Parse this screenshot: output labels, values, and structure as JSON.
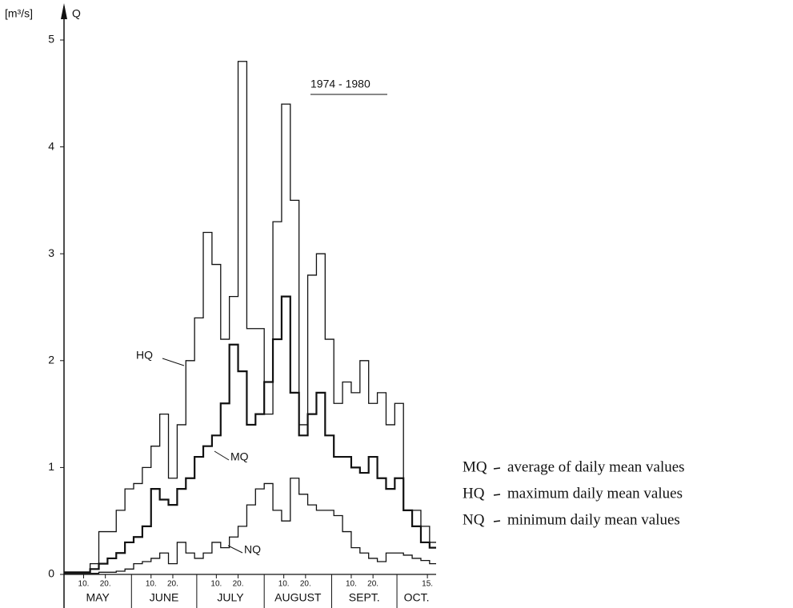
{
  "chart_data": {
    "type": "step",
    "annotation": "1974 - 1980",
    "y_label": "[m³/s]",
    "y_symbol": "Q",
    "color": "#111111",
    "x": [
      1,
      5,
      9,
      13,
      17,
      21,
      25,
      29,
      33,
      37,
      41,
      45,
      49,
      53,
      57,
      61,
      65,
      69,
      73,
      77,
      81,
      85,
      89,
      93,
      97,
      101,
      105,
      109,
      113,
      117,
      121,
      125,
      129,
      133,
      137,
      141,
      145,
      149,
      153,
      157,
      161,
      165,
      169
    ],
    "xlim": [
      1,
      172
    ],
    "xticks": [
      {
        "value": 10,
        "label": "10."
      },
      {
        "value": 20,
        "label": "20."
      },
      {
        "value": 41,
        "label": "10."
      },
      {
        "value": 51,
        "label": "20."
      },
      {
        "value": 71,
        "label": "10."
      },
      {
        "value": 81,
        "label": "20."
      },
      {
        "value": 102,
        "label": "10."
      },
      {
        "value": 112,
        "label": "20."
      },
      {
        "value": 133,
        "label": "10."
      },
      {
        "value": 143,
        "label": "20."
      },
      {
        "value": 168,
        "label": "15."
      }
    ],
    "months": [
      {
        "value": 1,
        "label": "MAY"
      },
      {
        "value": 32,
        "label": "JUNE"
      },
      {
        "value": 62,
        "label": "JULY"
      },
      {
        "value": 93,
        "label": "AUGUST"
      },
      {
        "value": 124,
        "label": "SEPT."
      },
      {
        "value": 154,
        "label": "OCT."
      }
    ],
    "ylim": [
      0,
      5
    ],
    "yticks": [
      0,
      1,
      2,
      3,
      4,
      5
    ],
    "grid": false,
    "series": [
      {
        "name": "MQ",
        "description": "average of daily mean values",
        "color": "#111111",
        "values": [
          0.02,
          0.02,
          0.02,
          0.05,
          0.1,
          0.15,
          0.2,
          0.3,
          0.35,
          0.45,
          0.8,
          0.7,
          0.65,
          0.8,
          0.9,
          1.1,
          1.2,
          1.3,
          1.6,
          2.15,
          1.9,
          1.4,
          1.5,
          1.8,
          2.2,
          2.6,
          1.7,
          1.3,
          1.5,
          1.7,
          1.3,
          1.1,
          1.1,
          1.0,
          0.95,
          1.1,
          0.9,
          0.8,
          0.9,
          0.6,
          0.45,
          0.3,
          0.25
        ]
      },
      {
        "name": "HQ",
        "description": "maximum daily mean values",
        "color": "#111111",
        "values": [
          0.02,
          0.02,
          0.02,
          0.1,
          0.4,
          0.4,
          0.6,
          0.8,
          0.85,
          1.0,
          1.2,
          1.5,
          0.9,
          1.4,
          2.0,
          2.4,
          3.2,
          2.9,
          2.2,
          2.6,
          4.8,
          2.3,
          2.3,
          1.5,
          3.3,
          4.4,
          3.5,
          1.4,
          2.8,
          3.0,
          2.2,
          1.6,
          1.8,
          1.7,
          2.0,
          1.6,
          1.7,
          1.4,
          1.6,
          0.6,
          0.6,
          0.45,
          0.3
        ]
      },
      {
        "name": "NQ",
        "description": "minimum daily mean values",
        "color": "#111111",
        "values": [
          0.01,
          0.01,
          0.01,
          0.01,
          0.02,
          0.02,
          0.03,
          0.05,
          0.1,
          0.12,
          0.15,
          0.2,
          0.1,
          0.3,
          0.2,
          0.15,
          0.2,
          0.3,
          0.25,
          0.35,
          0.45,
          0.65,
          0.8,
          0.85,
          0.6,
          0.5,
          0.9,
          0.75,
          0.65,
          0.6,
          0.6,
          0.55,
          0.4,
          0.25,
          0.2,
          0.15,
          0.12,
          0.2,
          0.2,
          0.18,
          0.15,
          0.13,
          0.1
        ]
      }
    ]
  }
}
